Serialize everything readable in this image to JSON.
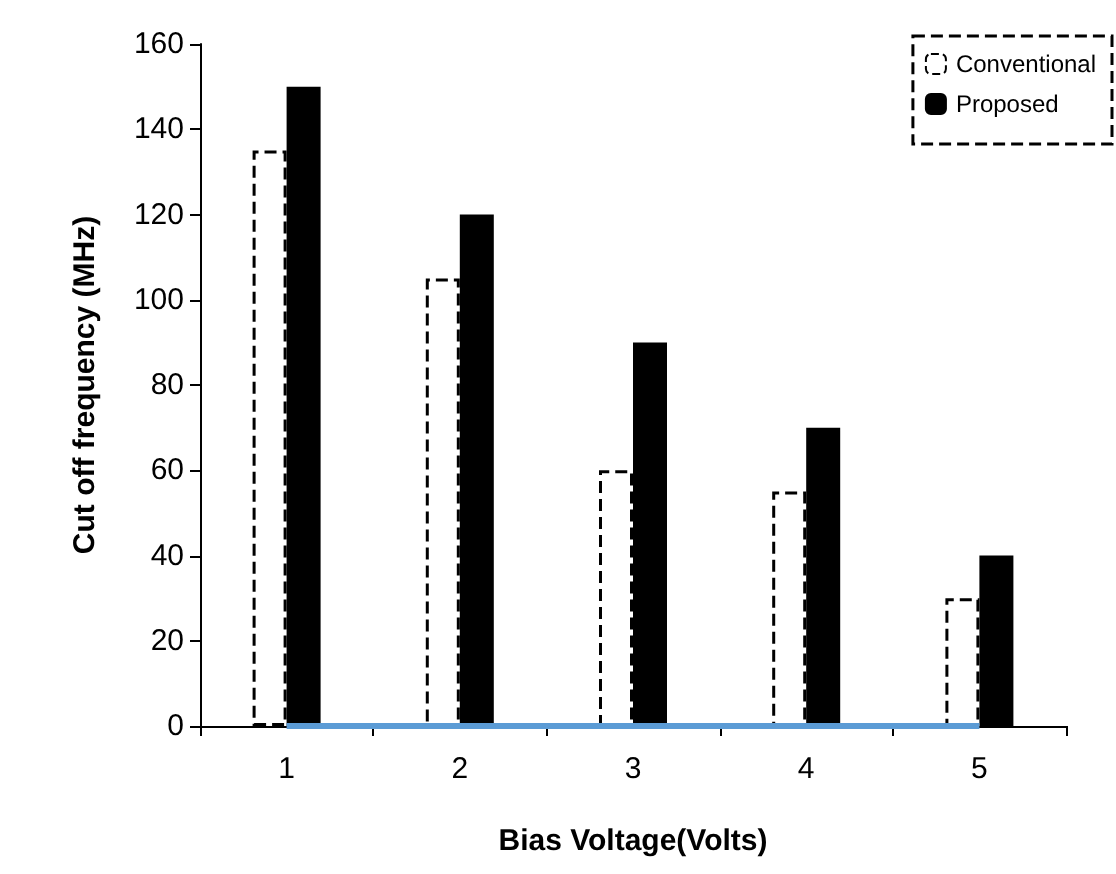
{
  "chart_data": {
    "type": "bar",
    "xlabel": "Bias Voltage(Volts)",
    "ylabel": "Cut off frequency (MHz)",
    "categories": [
      "1",
      "2",
      "3",
      "4",
      "5"
    ],
    "series": [
      {
        "name": "Conventional",
        "color": "#ffffff",
        "line_style": "dashed",
        "values": [
          135,
          105,
          60,
          55,
          30
        ]
      },
      {
        "name": "Proposed",
        "color": "#000000",
        "values": [
          150,
          120,
          90,
          70,
          40
        ]
      },
      {
        "type": "line",
        "color": "#5b9bd5",
        "marker": "none",
        "values": [
          0,
          0,
          0,
          0,
          0
        ]
      }
    ],
    "ylim": [
      0,
      160
    ],
    "yticks": [
      0,
      20,
      40,
      60,
      80,
      100,
      120,
      140,
      160
    ],
    "grid": false,
    "legend": "top right"
  }
}
